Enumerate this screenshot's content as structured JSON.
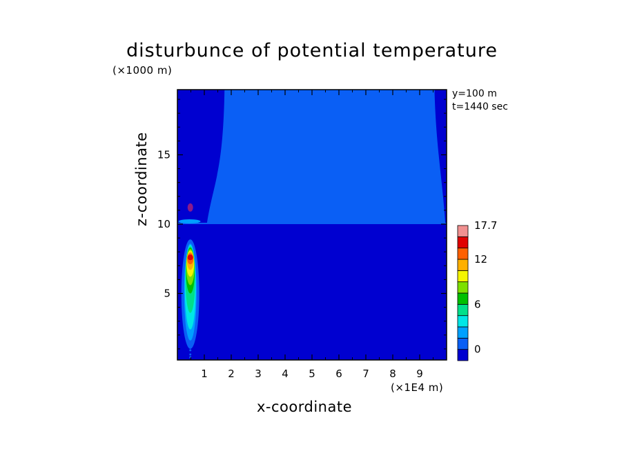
{
  "chart_data": {
    "type": "heatmap",
    "title": "disturbunce of potential temperature",
    "xlabel": "x-coordinate",
    "ylabel": "z-coordinate",
    "x_unit_label": "(×1E4 m)",
    "y_unit_label": "(×1000 m)",
    "annotations": [
      "y=100 m",
      "t=1440 sec"
    ],
    "xlim": [
      0,
      10
    ],
    "ylim": [
      0.2,
      19.7
    ],
    "x_ticks": [
      1,
      2,
      3,
      4,
      5,
      6,
      7,
      8,
      9
    ],
    "y_ticks": [
      5,
      10,
      15
    ],
    "colorbar": {
      "tick_labels": [
        "0",
        "6",
        "12",
        "17.7"
      ],
      "tick_values": [
        0,
        6,
        12,
        17.7
      ],
      "levels": [
        {
          "lo": -3,
          "hi": 0,
          "color": "#0000d0"
        },
        {
          "lo": 0,
          "hi": 1.5,
          "color": "#0a5ff5"
        },
        {
          "lo": 1.5,
          "hi": 3,
          "color": "#00a0ff"
        },
        {
          "lo": 3,
          "hi": 4.5,
          "color": "#00e6e6"
        },
        {
          "lo": 4.5,
          "hi": 6,
          "color": "#00e08a"
        },
        {
          "lo": 6,
          "hi": 7.5,
          "color": "#00c000"
        },
        {
          "lo": 7.5,
          "hi": 9,
          "color": "#7de000"
        },
        {
          "lo": 9,
          "hi": 10.5,
          "color": "#f4f400"
        },
        {
          "lo": 10.5,
          "hi": 12,
          "color": "#ffb000"
        },
        {
          "lo": 12,
          "hi": 13.5,
          "color": "#ff6000"
        },
        {
          "lo": 13.5,
          "hi": 15,
          "color": "#e00000"
        },
        {
          "lo": 15,
          "hi": 17.7,
          "color": "#f09090"
        }
      ]
    },
    "fields": {
      "background_level": 0,
      "upper_region": {
        "level": 1,
        "bottom_z": 10.1,
        "top_z": 19.7,
        "x_left_at_top": 1.75,
        "x_left_at_bottom": 1.1,
        "x_right_at_top": 9.55,
        "x_right_at_bottom": 9.95
      },
      "plume": {
        "x_center": 0.48,
        "z_center": 7.0,
        "levels_present": [
          1,
          2,
          3,
          4,
          5,
          6,
          7,
          8,
          9,
          10
        ],
        "max_value": 15
      },
      "small_anomaly": {
        "x": 0.48,
        "z": 11.2,
        "color": "#8a1a8a"
      }
    }
  }
}
